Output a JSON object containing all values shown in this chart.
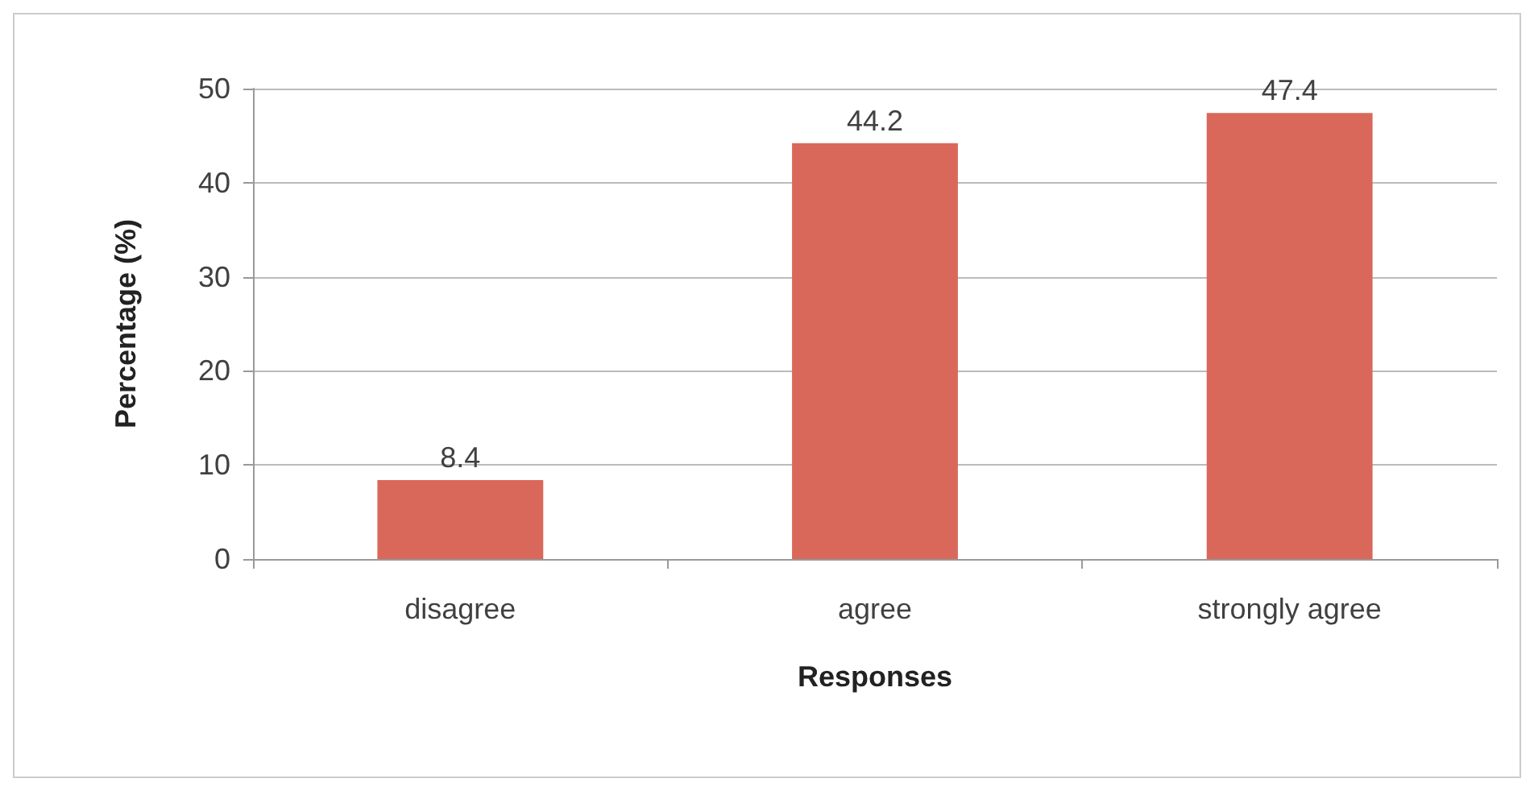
{
  "chart_data": {
    "type": "bar",
    "xlabel": "Responses",
    "ylabel": "Percentage (%)",
    "categories": [
      "disagree",
      "agree",
      "strongly agree"
    ],
    "values": [
      8.4,
      44.2,
      47.4
    ],
    "color": "#d9685b",
    "ylim": [
      0,
      50
    ],
    "yticks": [
      0,
      10,
      20,
      30,
      40,
      50
    ],
    "grid": "y",
    "data_labels": true
  }
}
